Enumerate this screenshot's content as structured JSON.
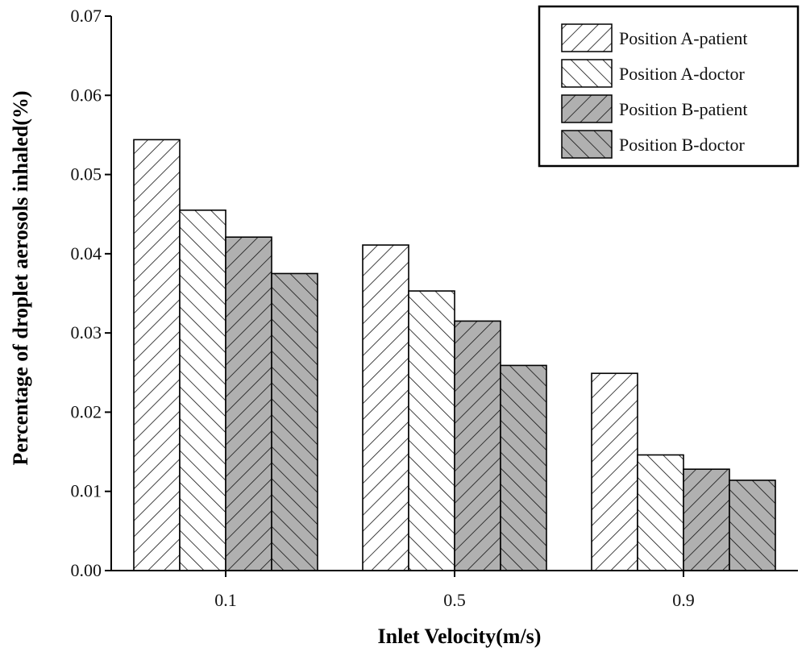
{
  "chart_data": {
    "type": "bar",
    "title": "",
    "xlabel": "Inlet Velocity(m/s)",
    "ylabel": "Percentage of droplet aerosols inhaled(%)",
    "categories": [
      "0.1",
      "0.5",
      "0.9"
    ],
    "ylim": [
      0,
      0.07
    ],
    "yticks": [
      "0.00",
      "0.01",
      "0.02",
      "0.03",
      "0.04",
      "0.05",
      "0.06",
      "0.07"
    ],
    "grid": false,
    "legend_position": "top-right",
    "series": [
      {
        "name": "Position A-patient",
        "values": [
          0.0544,
          0.0411,
          0.0249
        ],
        "fill": "#ffffff",
        "hatch": "forward"
      },
      {
        "name": "Position A-doctor",
        "values": [
          0.0455,
          0.0353,
          0.0146
        ],
        "fill": "#ffffff",
        "hatch": "backward"
      },
      {
        "name": "Position B-patient",
        "values": [
          0.0421,
          0.0315,
          0.0128
        ],
        "fill": "#b0b0b0",
        "hatch": "forward"
      },
      {
        "name": "Position B-doctor",
        "values": [
          0.0375,
          0.0259,
          0.0114
        ],
        "fill": "#b0b0b0",
        "hatch": "backward"
      }
    ]
  }
}
